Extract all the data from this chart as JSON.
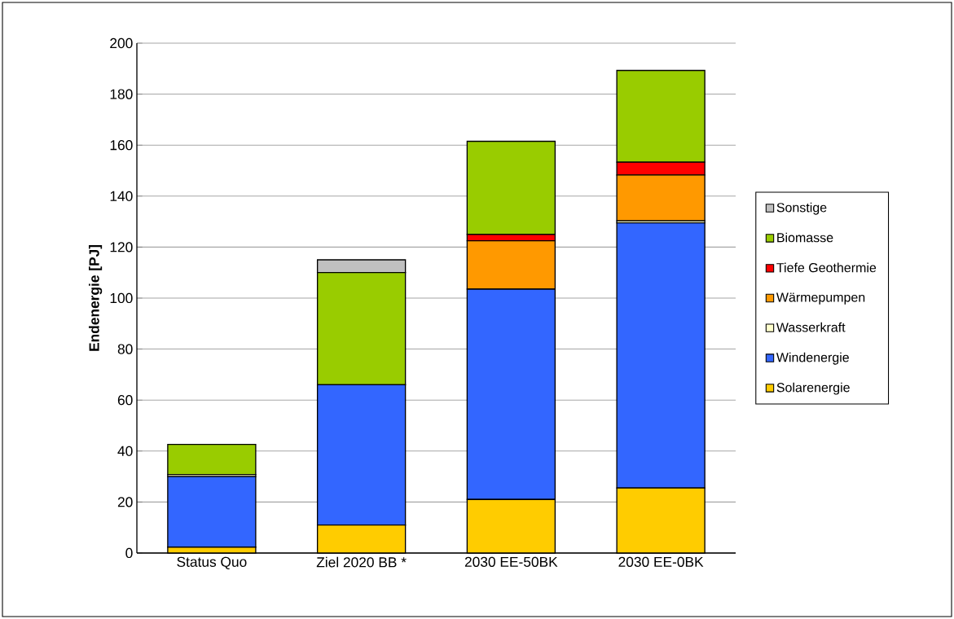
{
  "chart_data": {
    "type": "bar",
    "stacked": true,
    "ylabel": "Endenergie [PJ]",
    "categories": [
      "Status Quo",
      "Ziel 2020  BB *",
      "2030 EE-50BK",
      "2030 EE-0BK"
    ],
    "series": [
      {
        "name": "Solarenergie",
        "color": "#ffcc00",
        "values": [
          2.3,
          11,
          21,
          25.5
        ]
      },
      {
        "name": "Windenergie",
        "color": "#3366ff",
        "values": [
          27.7,
          55,
          82.5,
          104
        ]
      },
      {
        "name": "Wasserkraft",
        "color": "#ffffcc",
        "values": [
          0.8,
          0,
          null,
          0.8
        ]
      },
      {
        "name": "Wärmepumpen",
        "color": "#ff9900",
        "values": [
          0,
          0,
          19,
          18
        ]
      },
      {
        "name": "Tiefe Geothermie",
        "color": "#ff0000",
        "values": [
          0,
          0,
          2.5,
          5
        ]
      },
      {
        "name": "Biomasse",
        "color": "#99cc00",
        "values": [
          11.8,
          44,
          36.5,
          36
        ]
      },
      {
        "name": "Sonstige",
        "color": "#c0c0c0",
        "values": [
          0,
          5,
          0,
          0
        ]
      }
    ],
    "ylim": [
      0,
      200
    ],
    "yticks": [
      0,
      20,
      40,
      60,
      80,
      100,
      120,
      140,
      160,
      180,
      200
    ],
    "grid": "y",
    "legend": "right"
  }
}
